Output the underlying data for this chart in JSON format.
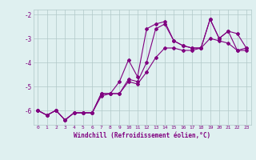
{
  "xlabel": "Windchill (Refroidissement éolien,°C)",
  "x": [
    0,
    1,
    2,
    3,
    4,
    5,
    6,
    7,
    8,
    9,
    10,
    11,
    12,
    13,
    14,
    15,
    16,
    17,
    18,
    19,
    20,
    21,
    22,
    23
  ],
  "line_main": [
    -6.0,
    -6.2,
    -6.0,
    -6.4,
    -6.1,
    -6.1,
    -6.1,
    -5.3,
    -5.3,
    -5.3,
    -4.7,
    -4.8,
    -4.0,
    -2.6,
    -2.4,
    -3.1,
    -3.3,
    -3.4,
    -3.4,
    -2.2,
    -3.0,
    -2.7,
    -3.5,
    -3.4
  ],
  "line_upper": [
    -6.0,
    -6.2,
    -6.0,
    -6.4,
    -6.1,
    -6.1,
    -6.1,
    -5.3,
    -5.3,
    -4.8,
    -3.9,
    -4.6,
    -2.6,
    -2.4,
    -2.3,
    -3.1,
    -3.3,
    -3.4,
    -3.4,
    -2.2,
    -3.0,
    -2.7,
    -2.8,
    -3.4
  ],
  "line_lower": [
    -6.0,
    -6.2,
    -6.0,
    -6.4,
    -6.1,
    -6.1,
    -6.1,
    -5.4,
    -5.3,
    -5.3,
    -4.8,
    -4.9,
    -4.4,
    -3.8,
    -3.4,
    -3.4,
    -3.5,
    -3.5,
    -3.4,
    -3.0,
    -3.1,
    -3.2,
    -3.5,
    -3.5
  ],
  "line_color": "#800080",
  "bg_color": "#dff0f0",
  "grid_color": "#b0c8c8",
  "ylim": [
    -6.6,
    -1.8
  ],
  "yticks": [
    -6,
    -5,
    -4,
    -3,
    -2
  ],
  "xlim": [
    -0.5,
    23.5
  ]
}
